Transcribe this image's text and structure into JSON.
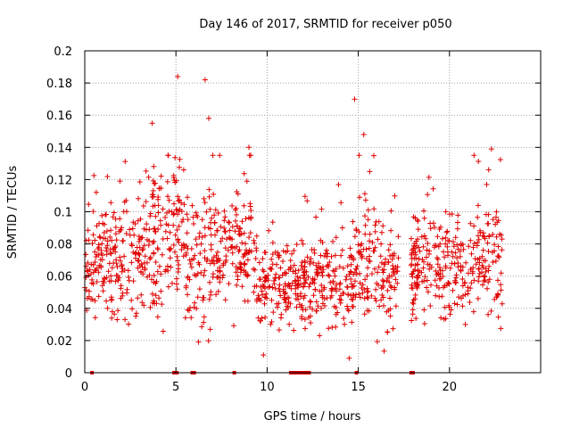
{
  "chart_data": {
    "type": "scatter",
    "title": "Day 146 of 2017, SRMTID for receiver p050",
    "xlabel": "GPS time / hours",
    "ylabel": "SRMTID / TECUs",
    "xlim": [
      0,
      25
    ],
    "ylim": [
      0,
      0.2
    ],
    "xticks": [
      0,
      5,
      10,
      15,
      20
    ],
    "xtick_labels": [
      "0",
      "5",
      "10",
      "15",
      "20"
    ],
    "yticks": [
      0,
      0.02,
      0.04,
      0.06,
      0.08,
      0.1,
      0.12,
      0.14,
      0.16,
      0.18,
      0.2
    ],
    "ytick_labels": [
      "0",
      "0.02",
      "0.04",
      "0.06",
      "0.08",
      "0.1",
      "0.12",
      "0.14",
      "0.16",
      "0.18",
      "0.2"
    ],
    "grid": true,
    "marker": "+",
    "series_color": "#e00000",
    "point_count": 1400,
    "time_range_hours": [
      0.0,
      22.9
    ],
    "typical_range": [
      0.03,
      0.1
    ],
    "notable_points": [
      {
        "x": 5.1,
        "y": 0.184
      },
      {
        "x": 6.6,
        "y": 0.182
      },
      {
        "x": 3.7,
        "y": 0.155
      },
      {
        "x": 6.8,
        "y": 0.158
      },
      {
        "x": 14.8,
        "y": 0.17
      },
      {
        "x": 15.3,
        "y": 0.148
      },
      {
        "x": 9.0,
        "y": 0.14
      },
      {
        "x": 22.3,
        "y": 0.139
      },
      {
        "x": 14.5,
        "y": 0.009
      },
      {
        "x": 9.8,
        "y": 0.011
      }
    ],
    "zero_markers_x": [
      0.4,
      4.9,
      5.0,
      5.05,
      5.9,
      6.0,
      8.2,
      11.3,
      11.4,
      11.5,
      11.6,
      11.7,
      11.8,
      11.9,
      12.0,
      12.1,
      12.2,
      12.3,
      14.9,
      17.9,
      18.0
    ]
  }
}
